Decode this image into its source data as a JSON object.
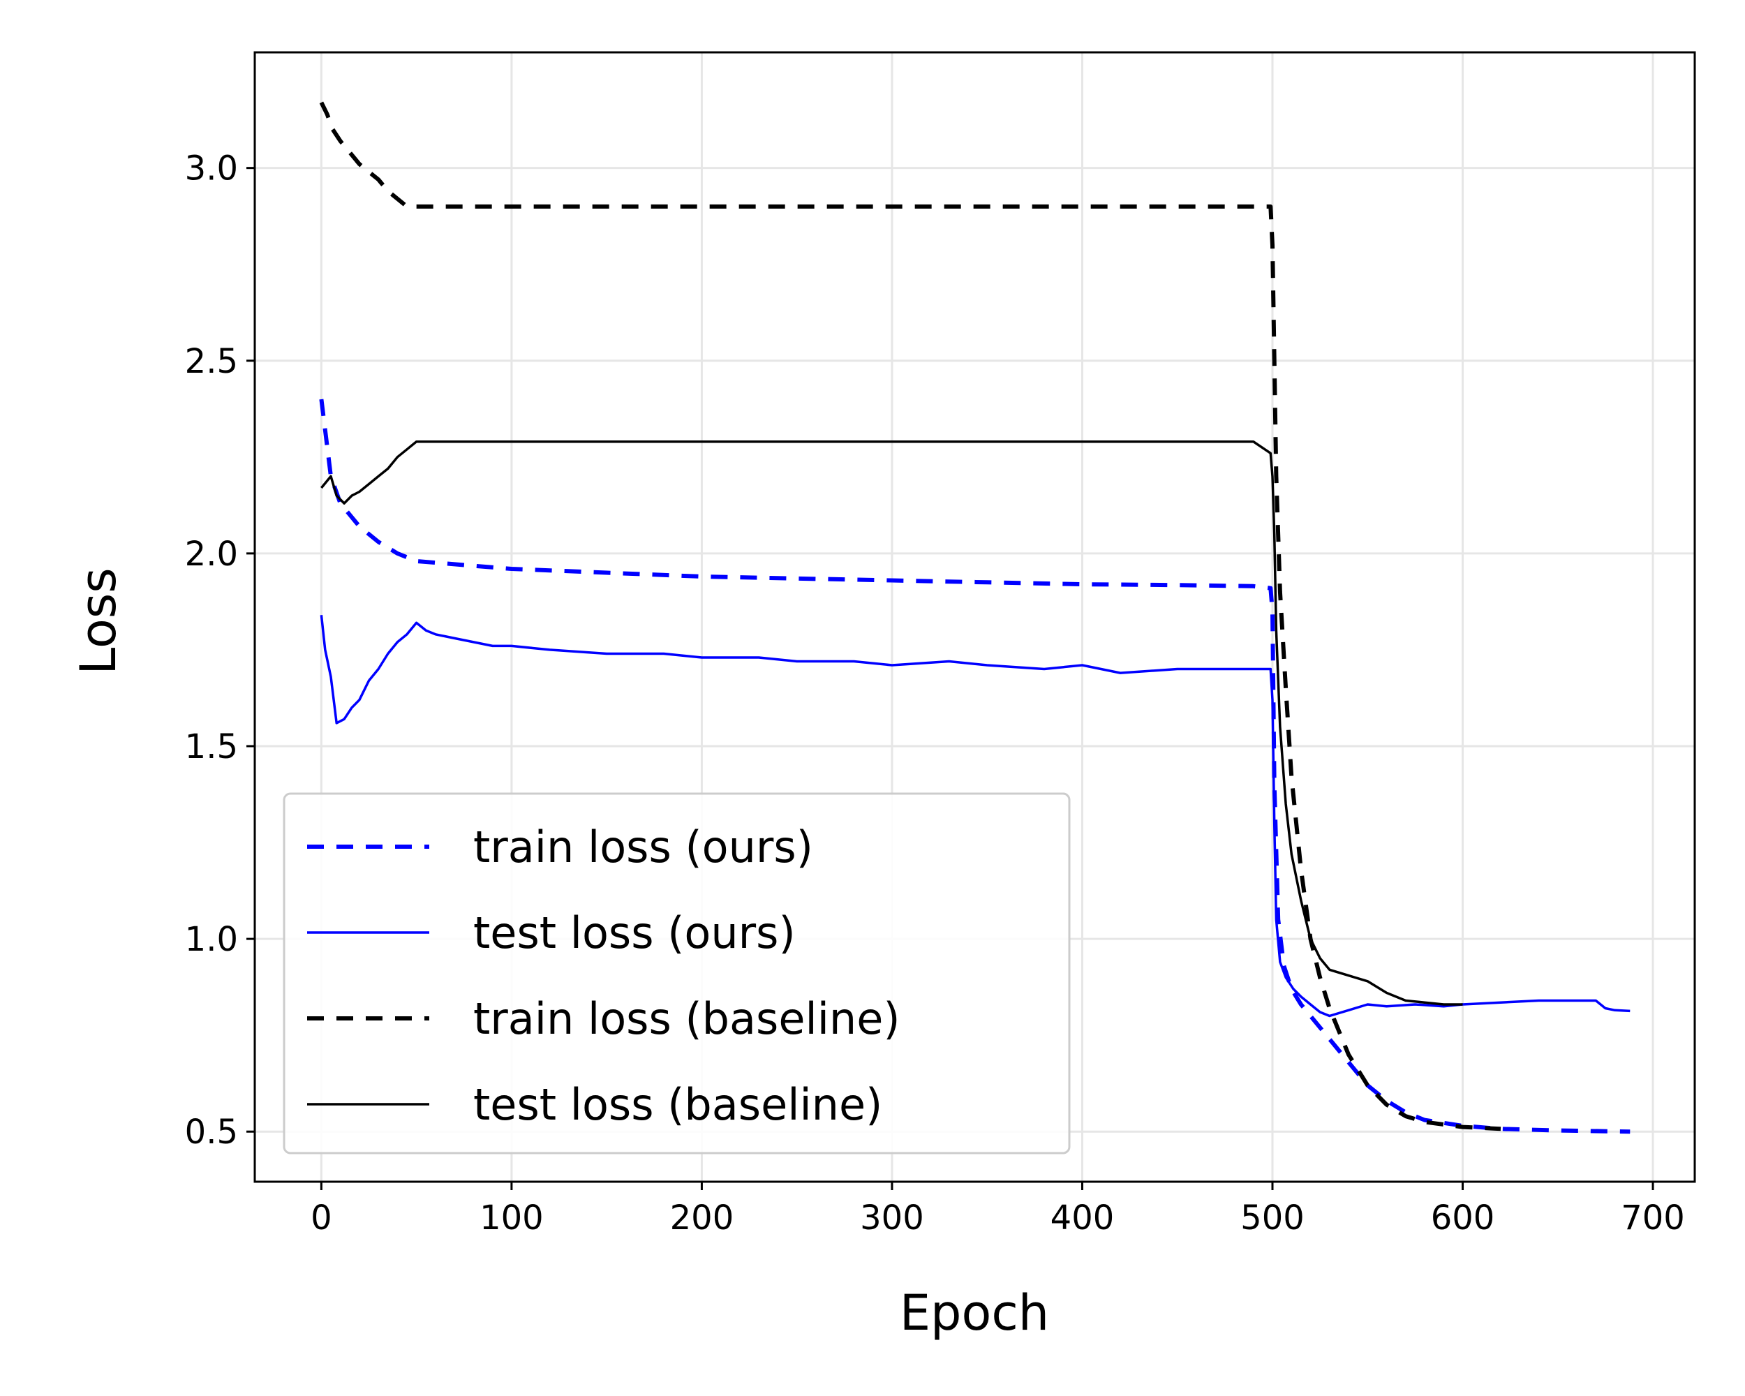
{
  "chart_data": {
    "type": "line",
    "title": "",
    "xlabel": "Epoch",
    "ylabel": "Loss",
    "xlim": [
      -35,
      722
    ],
    "ylim": [
      0.37,
      3.3
    ],
    "xticks": [
      0,
      100,
      200,
      300,
      400,
      500,
      600,
      700
    ],
    "xtick_labels": [
      "0",
      "100",
      "200",
      "300",
      "400",
      "500",
      "600",
      "700"
    ],
    "yticks": [
      0.5,
      1.0,
      1.5,
      2.0,
      2.5,
      3.0
    ],
    "ytick_labels": [
      "0.5",
      "1.0",
      "1.5",
      "2.0",
      "2.5",
      "3.0"
    ],
    "grid": true,
    "legend_position": "lower-left",
    "series": [
      {
        "name": "train loss (ours)",
        "color": "#0000ff",
        "style": "dashed",
        "x": [
          0,
          5,
          10,
          20,
          30,
          40,
          50,
          75,
          100,
          150,
          200,
          250,
          300,
          350,
          400,
          450,
          490,
          499,
          500,
          501,
          503,
          506,
          510,
          515,
          520,
          530,
          540,
          550,
          560,
          570,
          580,
          600,
          620,
          650,
          688
        ],
        "y": [
          2.4,
          2.2,
          2.13,
          2.07,
          2.03,
          2.0,
          1.98,
          1.97,
          1.96,
          1.95,
          1.94,
          1.935,
          1.93,
          1.925,
          1.92,
          1.918,
          1.915,
          1.91,
          1.85,
          1.4,
          1.05,
          0.93,
          0.87,
          0.83,
          0.8,
          0.74,
          0.68,
          0.62,
          0.58,
          0.55,
          0.53,
          0.515,
          0.507,
          0.503,
          0.5
        ]
      },
      {
        "name": "test loss (ours)",
        "color": "#0000ff",
        "style": "solid",
        "x": [
          0,
          2,
          5,
          8,
          12,
          16,
          20,
          25,
          30,
          35,
          40,
          45,
          50,
          55,
          60,
          70,
          80,
          90,
          100,
          120,
          150,
          180,
          200,
          230,
          250,
          280,
          300,
          330,
          350,
          380,
          400,
          420,
          450,
          470,
          490,
          499,
          500,
          501,
          502,
          504,
          507,
          511,
          515,
          520,
          525,
          530,
          540,
          550,
          560,
          575,
          590,
          600,
          620,
          640,
          660,
          670,
          675,
          680,
          688
        ],
        "y": [
          1.84,
          1.75,
          1.68,
          1.56,
          1.57,
          1.6,
          1.62,
          1.67,
          1.7,
          1.74,
          1.77,
          1.79,
          1.82,
          1.8,
          1.79,
          1.78,
          1.77,
          1.76,
          1.76,
          1.75,
          1.74,
          1.74,
          1.73,
          1.73,
          1.72,
          1.72,
          1.71,
          1.72,
          1.71,
          1.7,
          1.71,
          1.69,
          1.7,
          1.7,
          1.7,
          1.7,
          1.62,
          1.3,
          1.05,
          0.94,
          0.9,
          0.87,
          0.85,
          0.83,
          0.81,
          0.8,
          0.815,
          0.83,
          0.825,
          0.83,
          0.825,
          0.83,
          0.835,
          0.84,
          0.84,
          0.84,
          0.82,
          0.815,
          0.813
        ]
      },
      {
        "name": "train loss (baseline)",
        "color": "#000000",
        "style": "dashed",
        "x": [
          0,
          3,
          6,
          10,
          15,
          20,
          25,
          30,
          35,
          40,
          45,
          50,
          100,
          200,
          300,
          400,
          490,
          499,
          500,
          501,
          502,
          504,
          507,
          510,
          515,
          520,
          525,
          530,
          540,
          550,
          560,
          570,
          580,
          600,
          620
        ],
        "y": [
          3.17,
          3.14,
          3.1,
          3.07,
          3.04,
          3.01,
          2.99,
          2.97,
          2.94,
          2.92,
          2.9,
          2.9,
          2.9,
          2.9,
          2.9,
          2.9,
          2.9,
          2.9,
          2.8,
          2.5,
          2.2,
          1.9,
          1.65,
          1.42,
          1.18,
          1.0,
          0.9,
          0.82,
          0.7,
          0.62,
          0.57,
          0.54,
          0.525,
          0.512,
          0.507
        ]
      },
      {
        "name": "test loss (baseline)",
        "color": "#000000",
        "style": "solid",
        "x": [
          0,
          5,
          8,
          12,
          16,
          20,
          25,
          30,
          35,
          40,
          45,
          50,
          60,
          80,
          100,
          150,
          200,
          250,
          300,
          350,
          400,
          450,
          490,
          499,
          500,
          501,
          502,
          504,
          507,
          510,
          515,
          520,
          525,
          530,
          540,
          550,
          560,
          570,
          580,
          590,
          600
        ],
        "y": [
          2.17,
          2.2,
          2.15,
          2.13,
          2.15,
          2.16,
          2.18,
          2.2,
          2.22,
          2.25,
          2.27,
          2.29,
          2.29,
          2.29,
          2.29,
          2.29,
          2.29,
          2.29,
          2.29,
          2.29,
          2.29,
          2.29,
          2.29,
          2.26,
          2.2,
          2.05,
          1.8,
          1.55,
          1.35,
          1.22,
          1.1,
          1.0,
          0.95,
          0.92,
          0.905,
          0.89,
          0.86,
          0.84,
          0.835,
          0.83,
          0.83
        ]
      }
    ]
  }
}
